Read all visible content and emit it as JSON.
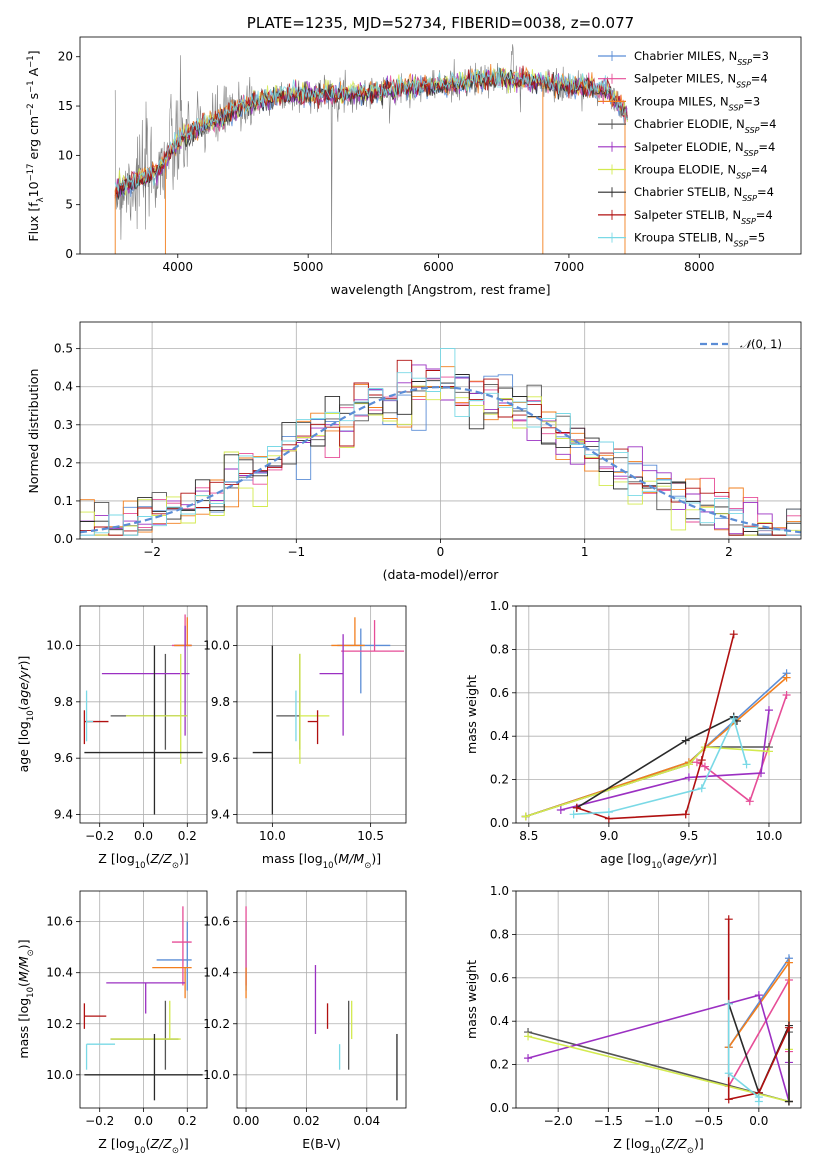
{
  "chart_data": [
    {
      "type": "line",
      "title": "PLATE=1235, MJD=52734, FIBERID=0038, z=0.077",
      "xlabel": "wavelength [Angstrom, rest frame]",
      "ylabel": "Flux [f_λ 10^-17 erg cm^-2 s^-1 A^-1]",
      "xlim": [
        3250,
        8780
      ],
      "ylim": [
        0,
        22
      ],
      "xticks": [
        "4000",
        "5000",
        "6000",
        "7000",
        "8000"
      ],
      "yticks": [
        "0",
        "5",
        "10",
        "15",
        "20"
      ],
      "grid": false,
      "legend_position": "top-right",
      "series": [
        {
          "name": "Chabrier MILES, N_SSP=3",
          "color": "#5b8dd6"
        },
        {
          "name": "Salpeter MILES, N_SSP=4",
          "color": "#e64d97"
        },
        {
          "name": "Kroupa MILES, N_SSP=3",
          "color": "#f27f1e"
        },
        {
          "name": "Chabrier ELODIE, N_SSP=4",
          "color": "#555555"
        },
        {
          "name": "Salpeter ELODIE, N_SSP=4",
          "color": "#9b30c2"
        },
        {
          "name": "Kroupa ELODIE, N_SSP=4",
          "color": "#d3ea4f"
        },
        {
          "name": "Chabrier STELIB, N_SSP=4",
          "color": "#2a2a2a"
        },
        {
          "name": "Salpeter STELIB, N_SSP=4",
          "color": "#b01010"
        },
        {
          "name": "Kroupa STELIB, N_SSP=5",
          "color": "#7ad9e6"
        }
      ],
      "continuum": {
        "x": [
          3520,
          3700,
          3850,
          3950,
          4050,
          4150,
          4300,
          4500,
          4700,
          4900,
          5100,
          5300,
          5500,
          5700,
          5900,
          6100,
          6300,
          6500,
          6700,
          6900,
          7100,
          7300,
          7450
        ],
        "y": [
          6.5,
          7.5,
          8.5,
          10.5,
          12,
          12.8,
          13.6,
          15,
          15.8,
          16.2,
          16.2,
          16.2,
          16.4,
          16.8,
          17,
          17.2,
          17.6,
          17.8,
          17.5,
          17.2,
          17.0,
          16.5,
          14.0
        ]
      }
    },
    {
      "type": "line",
      "title": "",
      "xlabel": "(data-model)/error",
      "ylabel": "Normed distribution",
      "xlim": [
        -2.5,
        2.5
      ],
      "ylim": [
        0,
        0.57
      ],
      "xticks": [
        "−2",
        "−1",
        "0",
        "1",
        "2"
      ],
      "yticks": [
        "0.0",
        "0.1",
        "0.2",
        "0.3",
        "0.4",
        "0.5"
      ],
      "grid": true,
      "legend_position": "top-right",
      "legend": "N(0,1)",
      "reference_curve": {
        "name": "N(0,1)",
        "mean": 0,
        "sd": 1,
        "color": "#5b8dd6"
      }
    },
    {
      "type": "scatter",
      "xlabel": "Z [log10(Z/Z⊙)]",
      "ylabel": "age  [log10(age/yr)]",
      "xlim": [
        -0.29,
        0.29
      ],
      "ylim": [
        9.37,
        10.14
      ],
      "xticks": [
        "−0.2",
        "0.0",
        "0.2"
      ],
      "yticks": [
        "9.4",
        "9.6",
        "9.8",
        "10.0"
      ],
      "grid": true,
      "points": [
        {
          "x": 0.2,
          "y": 10.0,
          "xerr": [
            0.06,
            0.02
          ],
          "yerr": [
            0.0,
            0.0
          ],
          "color": "#5b8dd6"
        },
        {
          "x": 0.19,
          "y": 10.0,
          "xerr": [
            0.06,
            0.03
          ],
          "yerr": [
            0.0,
            0.11
          ],
          "color": "#e64d97"
        },
        {
          "x": 0.2,
          "y": 10.0,
          "xerr": [
            0.06,
            0.02
          ],
          "yerr": [
            0.0,
            0.1
          ],
          "color": "#f27f1e"
        },
        {
          "x": 0.1,
          "y": 9.75,
          "xerr": [
            0.25,
            0.1
          ],
          "yerr": [
            0.12,
            0.22
          ],
          "color": "#555555"
        },
        {
          "x": 0.19,
          "y": 9.9,
          "xerr": [
            0.38,
            0.02
          ],
          "yerr": [
            0.22,
            0.17
          ],
          "color": "#9b30c2"
        },
        {
          "x": 0.17,
          "y": 9.75,
          "xerr": [
            0.25,
            0.03
          ],
          "yerr": [
            0.17,
            0.22
          ],
          "color": "#d3ea4f"
        },
        {
          "x": 0.05,
          "y": 9.62,
          "xerr": [
            0.32,
            0.22
          ],
          "yerr": [
            0.22,
            0.38
          ],
          "color": "#2a2a2a"
        },
        {
          "x": -0.27,
          "y": 9.73,
          "xerr": [
            0.0,
            0.11
          ],
          "yerr": [
            0.08,
            0.04
          ],
          "color": "#b01010"
        },
        {
          "x": -0.26,
          "y": 9.73,
          "xerr": [
            0.0,
            0.03
          ],
          "yerr": [
            0.07,
            0.11
          ],
          "color": "#7ad9e6"
        }
      ]
    },
    {
      "type": "scatter",
      "xlabel": "mass [log10(M/M⊙)]",
      "ylabel": "",
      "xlim": [
        9.82,
        10.68
      ],
      "ylim": [
        9.37,
        10.14
      ],
      "xticks": [
        "10.0",
        "10.5"
      ],
      "yticks": [
        "9.4",
        "9.6",
        "9.8",
        "10.0"
      ],
      "grid": true,
      "points": [
        {
          "x": 10.45,
          "y": 10.0,
          "xerr": [
            0.12,
            0.15
          ],
          "yerr": [
            0.17,
            0.06
          ],
          "color": "#5b8dd6"
        },
        {
          "x": 10.52,
          "y": 9.98,
          "xerr": [
            0.17,
            0.15
          ],
          "yerr": [
            0.0,
            0.11
          ],
          "color": "#e64d97"
        },
        {
          "x": 10.42,
          "y": 10.0,
          "xerr": [
            0.12,
            0.05
          ],
          "yerr": [
            0.0,
            0.1
          ],
          "color": "#f27f1e"
        },
        {
          "x": 10.14,
          "y": 9.75,
          "xerr": [
            0.12,
            0.0
          ],
          "yerr": [
            0.12,
            0.22
          ],
          "color": "#555555"
        },
        {
          "x": 10.36,
          "y": 9.9,
          "xerr": [
            0.12,
            0.0
          ],
          "yerr": [
            0.22,
            0.14
          ],
          "color": "#9b30c2"
        },
        {
          "x": 10.14,
          "y": 9.75,
          "xerr": [
            0.0,
            0.15
          ],
          "yerr": [
            0.17,
            0.22
          ],
          "color": "#d3ea4f"
        },
        {
          "x": 10.0,
          "y": 9.62,
          "xerr": [
            0.1,
            0.0
          ],
          "yerr": [
            0.22,
            0.38
          ],
          "color": "#2a2a2a"
        },
        {
          "x": 10.23,
          "y": 9.73,
          "xerr": [
            0.05,
            0.0
          ],
          "yerr": [
            0.08,
            0.04
          ],
          "color": "#b01010"
        },
        {
          "x": 10.12,
          "y": 9.73,
          "xerr": [
            0.0,
            0.0
          ],
          "yerr": [
            0.07,
            0.11
          ],
          "color": "#7ad9e6"
        }
      ]
    },
    {
      "type": "line",
      "xlabel": "age  [log10(age/yr)]",
      "ylabel": "mass weight",
      "xlim": [
        8.42,
        10.2
      ],
      "ylim": [
        0,
        1.0
      ],
      "xticks": [
        "8.5",
        "9.0",
        "9.5",
        "10.0"
      ],
      "yticks": [
        "0.0",
        "0.2",
        "0.4",
        "0.6",
        "0.8",
        "1.0"
      ],
      "grid": true,
      "series": [
        {
          "color": "#5b8dd6",
          "x": [
            8.48,
            9.5,
            10.11
          ],
          "y": [
            0.03,
            0.28,
            0.69
          ]
        },
        {
          "color": "#e64d97",
          "x": [
            9.55,
            9.6,
            9.88,
            10.11
          ],
          "y": [
            0.28,
            0.26,
            0.1,
            0.59
          ]
        },
        {
          "color": "#f27f1e",
          "x": [
            8.48,
            9.5,
            10.11
          ],
          "y": [
            0.03,
            0.28,
            0.67
          ]
        },
        {
          "color": "#555555",
          "x": [
            8.48,
            9.5,
            9.6,
            10.0
          ],
          "y": [
            0.03,
            0.27,
            0.35,
            0.35
          ]
        },
        {
          "color": "#9b30c2",
          "x": [
            8.7,
            9.5,
            9.95,
            10.0
          ],
          "y": [
            0.06,
            0.21,
            0.23,
            0.52
          ]
        },
        {
          "color": "#d3ea4f",
          "x": [
            8.48,
            9.5,
            9.6,
            10.0
          ],
          "y": [
            0.03,
            0.27,
            0.35,
            0.33
          ]
        },
        {
          "color": "#2a2a2a",
          "x": [
            8.8,
            9.48,
            9.78,
            9.8
          ],
          "y": [
            0.07,
            0.38,
            0.49,
            0.47
          ]
        },
        {
          "color": "#b01010",
          "x": [
            8.8,
            9.0,
            9.48,
            9.58,
            9.78
          ],
          "y": [
            0.07,
            0.02,
            0.04,
            0.29,
            0.87
          ]
        },
        {
          "color": "#7ad9e6",
          "x": [
            8.78,
            9.0,
            9.58,
            9.78,
            9.86
          ],
          "y": [
            0.04,
            0.05,
            0.16,
            0.48,
            0.27
          ]
        }
      ]
    },
    {
      "type": "scatter",
      "xlabel": "Z [log10(Z/Z⊙)]",
      "ylabel": "mass [log10(M/M⊙)]",
      "xlim": [
        -0.29,
        0.29
      ],
      "ylim": [
        9.87,
        10.72
      ],
      "xticks": [
        "−0.2",
        "0.0",
        "0.2"
      ],
      "yticks": [
        "10.0",
        "10.2",
        "10.4",
        "10.6"
      ],
      "grid": true,
      "points": [
        {
          "x": 0.2,
          "y": 10.45,
          "xerr": [
            0.14,
            0.02
          ],
          "yerr": [
            0.12,
            0.15
          ],
          "color": "#5b8dd6"
        },
        {
          "x": 0.18,
          "y": 10.52,
          "xerr": [
            0.05,
            0.04
          ],
          "yerr": [
            0.17,
            0.14
          ],
          "color": "#e64d97"
        },
        {
          "x": 0.19,
          "y": 10.42,
          "xerr": [
            0.15,
            0.03
          ],
          "yerr": [
            0.12,
            0.0
          ],
          "color": "#f27f1e"
        },
        {
          "x": 0.1,
          "y": 10.14,
          "xerr": [
            0.25,
            0.06
          ],
          "yerr": [
            0.12,
            0.15
          ],
          "color": "#555555"
        },
        {
          "x": 0.01,
          "y": 10.36,
          "xerr": [
            0.18,
            0.18
          ],
          "yerr": [
            0.12,
            0.0
          ],
          "color": "#9b30c2"
        },
        {
          "x": 0.12,
          "y": 10.14,
          "xerr": [
            0.27,
            0.05
          ],
          "yerr": [
            0.0,
            0.15
          ],
          "color": "#d3ea4f"
        },
        {
          "x": 0.05,
          "y": 10.0,
          "xerr": [
            0.32,
            0.22
          ],
          "yerr": [
            0.1,
            0.16
          ],
          "color": "#2a2a2a"
        },
        {
          "x": -0.27,
          "y": 10.23,
          "xerr": [
            0.0,
            0.1
          ],
          "yerr": [
            0.05,
            0.05
          ],
          "color": "#b01010"
        },
        {
          "x": -0.26,
          "y": 10.12,
          "xerr": [
            0.0,
            0.13
          ],
          "yerr": [
            0.1,
            0.0
          ],
          "color": "#7ad9e6"
        }
      ]
    },
    {
      "type": "scatter",
      "xlabel": "E(B-V)",
      "ylabel": "",
      "xlim": [
        -0.003,
        0.053
      ],
      "ylim": [
        9.87,
        10.72
      ],
      "xticks": [
        "0.00",
        "0.02",
        "0.04"
      ],
      "yticks": [
        "10.0",
        "10.2",
        "10.4",
        "10.6"
      ],
      "grid": true,
      "points": [
        {
          "x": 0.0,
          "y": 10.45,
          "yerr": [
            0.12,
            0.15
          ],
          "color": "#5b8dd6"
        },
        {
          "x": 0.0,
          "y": 10.52,
          "yerr": [
            0.17,
            0.14
          ],
          "color": "#e64d97"
        },
        {
          "x": 0.0,
          "y": 10.42,
          "yerr": [
            0.12,
            0.0
          ],
          "color": "#f27f1e"
        },
        {
          "x": 0.034,
          "y": 10.14,
          "yerr": [
            0.12,
            0.15
          ],
          "color": "#555555"
        },
        {
          "x": 0.023,
          "y": 10.3,
          "yerr": [
            0.14,
            0.13
          ],
          "color": "#9b30c2"
        },
        {
          "x": 0.035,
          "y": 10.14,
          "yerr": [
            0.0,
            0.15
          ],
          "color": "#d3ea4f"
        },
        {
          "x": 0.05,
          "y": 10.0,
          "yerr": [
            0.1,
            0.16
          ],
          "color": "#2a2a2a"
        },
        {
          "x": 0.027,
          "y": 10.23,
          "yerr": [
            0.05,
            0.05
          ],
          "color": "#b01010"
        },
        {
          "x": 0.031,
          "y": 10.12,
          "yerr": [
            0.1,
            0.0
          ],
          "color": "#7ad9e6"
        }
      ]
    },
    {
      "type": "line",
      "xlabel": "Z [log10(Z/Z⊙)]",
      "ylabel": "mass weight",
      "xlim": [
        -2.42,
        0.42
      ],
      "ylim": [
        0,
        1.0
      ],
      "xticks": [
        "−2.0",
        "−1.5",
        "−1.0",
        "−0.5",
        "0.0"
      ],
      "yticks": [
        "0.0",
        "0.2",
        "0.4",
        "0.6",
        "0.8",
        "1.0"
      ],
      "grid": true,
      "series": [
        {
          "color": "#5b8dd6",
          "x": [
            -0.3,
            0.3,
            0.3
          ],
          "y": [
            0.28,
            0.69,
            0.03
          ]
        },
        {
          "color": "#e64d97",
          "x": [
            -0.3,
            0.3,
            0.3
          ],
          "y": [
            0.1,
            0.59,
            0.26
          ]
        },
        {
          "color": "#f27f1e",
          "x": [
            -0.3,
            0.3,
            0.3
          ],
          "y": [
            0.28,
            0.67,
            0.03
          ]
        },
        {
          "color": "#555555",
          "x": [
            -2.3,
            0.3,
            0.3
          ],
          "y": [
            0.35,
            0.03,
            0.35
          ]
        },
        {
          "color": "#9b30c2",
          "x": [
            -2.3,
            0.0,
            0.3,
            0.3
          ],
          "y": [
            0.23,
            0.52,
            0.03,
            0.21
          ]
        },
        {
          "color": "#d3ea4f",
          "x": [
            -2.3,
            0.3,
            0.3
          ],
          "y": [
            0.33,
            0.03,
            0.27
          ]
        },
        {
          "color": "#2a2a2a",
          "x": [
            -0.3,
            0.0,
            0.3,
            0.3
          ],
          "y": [
            0.48,
            0.07,
            0.38,
            0.03
          ]
        },
        {
          "color": "#b01010",
          "x": [
            -0.3,
            -0.3,
            0.0,
            0.3
          ],
          "y": [
            0.87,
            0.04,
            0.07,
            0.37
          ]
        },
        {
          "color": "#7ad9e6",
          "x": [
            -0.3,
            -0.3,
            0.0,
            0.0
          ],
          "y": [
            0.48,
            0.16,
            0.05,
            0.03
          ]
        }
      ]
    }
  ]
}
